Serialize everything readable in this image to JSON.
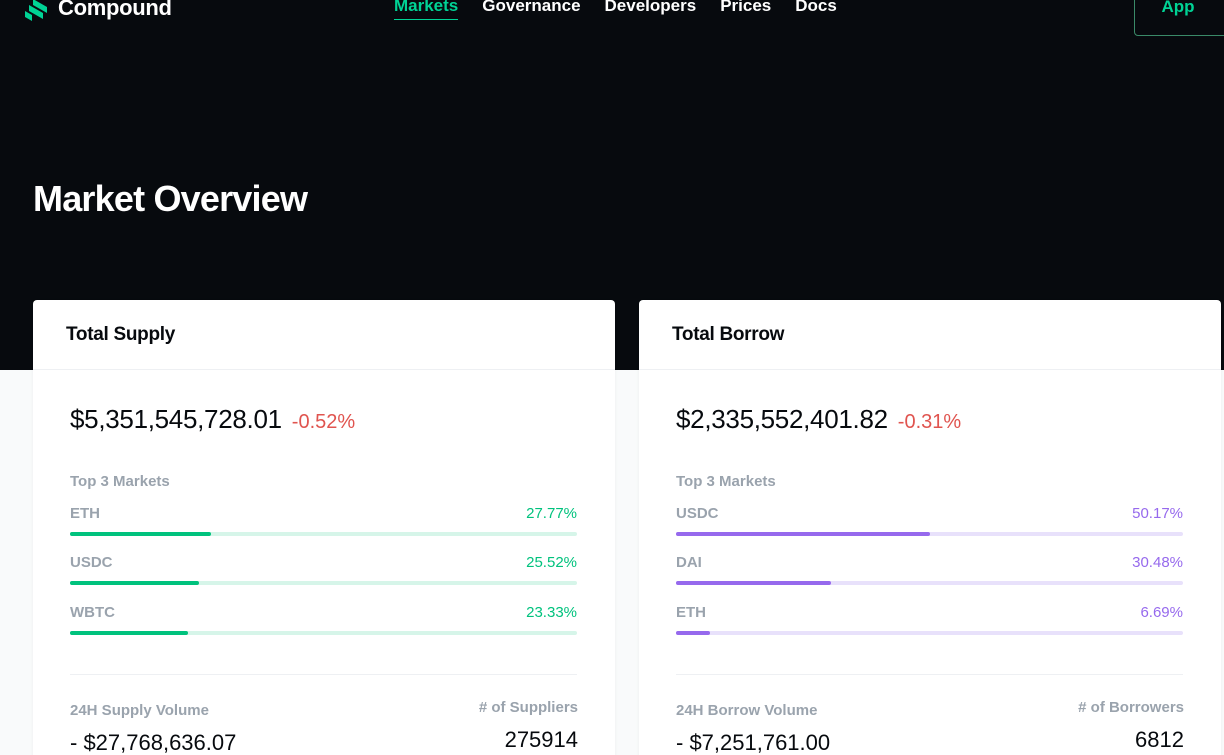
{
  "brand": {
    "name": "Compound",
    "accent": "#00d395"
  },
  "nav": {
    "items": [
      {
        "label": "Markets",
        "active": true
      },
      {
        "label": "Governance"
      },
      {
        "label": "Developers"
      },
      {
        "label": "Prices"
      },
      {
        "label": "Docs"
      }
    ],
    "app_label": "App"
  },
  "page_title": "Market Overview",
  "supply": {
    "title": "Total Supply",
    "total": "$5,351,545,728.01",
    "change": "-0.52%",
    "top3_label": "Top 3 Markets",
    "markets": [
      {
        "name": "ETH",
        "pct": "27.77%",
        "fraction": 0.2777
      },
      {
        "name": "USDC",
        "pct": "25.52%",
        "fraction": 0.2552
      },
      {
        "name": "WBTC",
        "pct": "23.33%",
        "fraction": 0.2333
      }
    ],
    "volume_label": "24H Supply Volume",
    "volume": "- $27,768,636.07",
    "count_label": "# of Suppliers",
    "count": "275914"
  },
  "borrow": {
    "title": "Total Borrow",
    "total": "$2,335,552,401.82",
    "change": "-0.31%",
    "top3_label": "Top 3 Markets",
    "markets": [
      {
        "name": "USDC",
        "pct": "50.17%",
        "fraction": 0.5017
      },
      {
        "name": "DAI",
        "pct": "30.48%",
        "fraction": 0.3048
      },
      {
        "name": "ETH",
        "pct": "6.69%",
        "fraction": 0.0669
      }
    ],
    "volume_label": "24H Borrow Volume",
    "volume": "- $7,251,761.00",
    "count_label": "# of Borrowers",
    "count": "6812"
  },
  "colors": {
    "supply": "#00c27d",
    "borrow": "#9669ed",
    "negative": "#e0544f",
    "hero_bg": "#070a0e"
  }
}
